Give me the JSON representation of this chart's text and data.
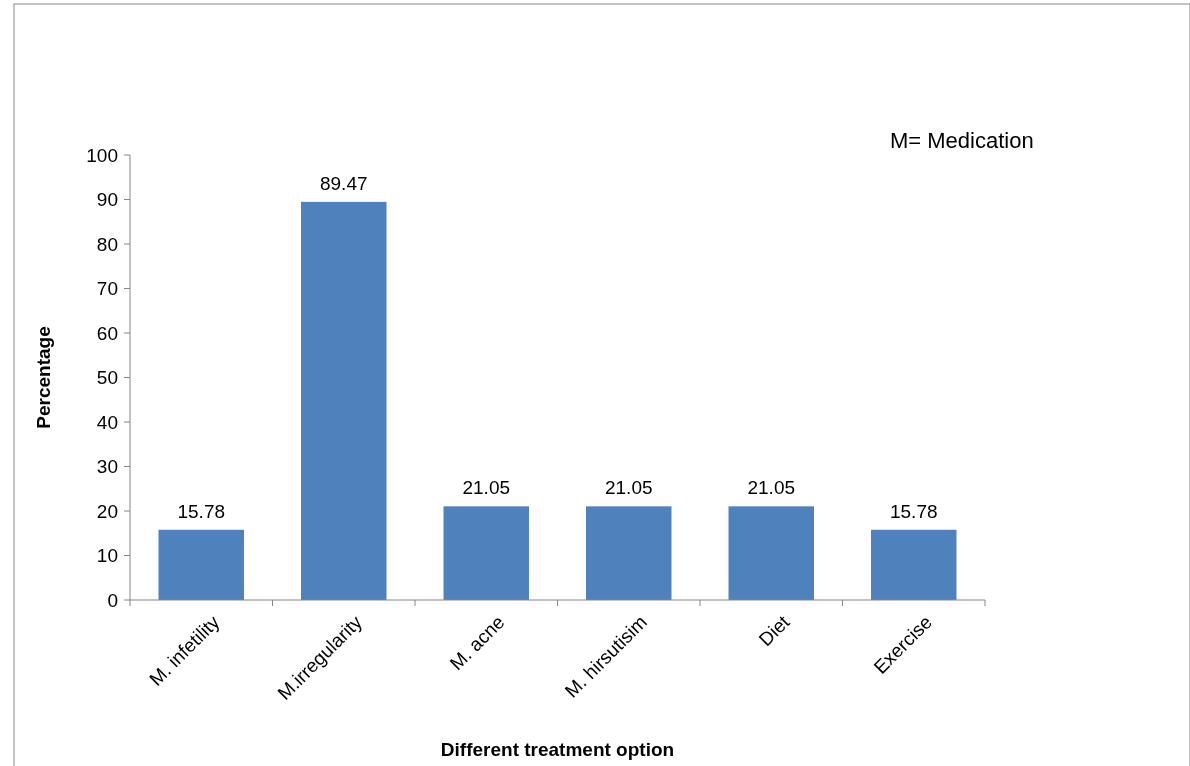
{
  "chart_data": {
    "type": "bar",
    "xlabel": "Different treatment option",
    "ylabel": "Percentage",
    "categories": [
      "M. infetility",
      "M.irregularity",
      "M. acne",
      "M. hirsutisim",
      "Diet",
      "Exercise"
    ],
    "values": [
      15.78,
      89.47,
      21.05,
      21.05,
      21.05,
      15.78
    ],
    "color": "#4f81bd",
    "ylim": [
      0,
      100
    ],
    "yticks": [
      0,
      10,
      20,
      30,
      40,
      50,
      60,
      70,
      80,
      90,
      100
    ],
    "data_labels": true,
    "annotations": [
      "M= Medication"
    ]
  }
}
